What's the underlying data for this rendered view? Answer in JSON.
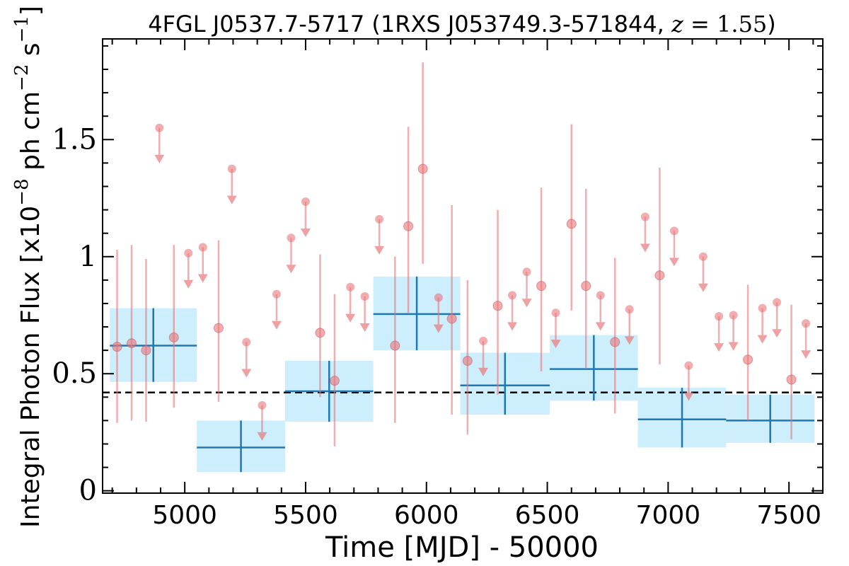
{
  "chart_data": {
    "type": "scatter",
    "title": {
      "source": "4FGL J0537.7-5717",
      "counterpart": "1RXS J053749.3-571844",
      "redshift_symbol": "z",
      "redshift_value": "1.55"
    },
    "xlabel": "Time [MJD] - 50000",
    "ylabel": {
      "prefix": "Integral Photon Flux [x10",
      "exp1": "−8",
      "middle": " ph cm",
      "exp2": "−2",
      "middle2": " s",
      "exp3": "−1",
      "suffix": "]"
    },
    "xlim": [
      4660,
      7640
    ],
    "ylim": [
      -0.01,
      1.93
    ],
    "xticks": [
      5000,
      5500,
      6000,
      6500,
      7000,
      7500
    ],
    "xtick_labels": [
      "5000",
      "5500",
      "6000",
      "6500",
      "7000",
      "7500"
    ],
    "yticks": [
      0,
      0.5,
      1.0,
      1.5
    ],
    "ytick_labels": [
      "0",
      "0.5",
      "1",
      "1.5"
    ],
    "grid": false,
    "reference_line": {
      "y": 0.42,
      "style": "dashed",
      "color": "#000000"
    },
    "colors": {
      "long_bins_line": "#1f77b4",
      "long_bins_band": "#cdeefc",
      "short_bins": "#e8777a"
    },
    "series": [
      {
        "kind": "long-bins",
        "points": [
          {
            "x0": 4690,
            "x1": 5050,
            "y": 0.62,
            "ylo": 0.465,
            "yhi": 0.78
          },
          {
            "x0": 5050,
            "x1": 5415,
            "y": 0.185,
            "ylo": 0.08,
            "yhi": 0.3
          },
          {
            "x0": 5415,
            "x1": 5780,
            "y": 0.425,
            "ylo": 0.295,
            "yhi": 0.555
          },
          {
            "x0": 5780,
            "x1": 6140,
            "y": 0.755,
            "ylo": 0.6,
            "yhi": 0.915
          },
          {
            "x0": 6140,
            "x1": 6510,
            "y": 0.45,
            "ylo": 0.325,
            "yhi": 0.59
          },
          {
            "x0": 6510,
            "x1": 6875,
            "y": 0.52,
            "ylo": 0.385,
            "yhi": 0.665
          },
          {
            "x0": 6875,
            "x1": 7240,
            "y": 0.305,
            "ylo": 0.185,
            "yhi": 0.44
          },
          {
            "x0": 7240,
            "x1": 7605,
            "y": 0.3,
            "ylo": 0.205,
            "yhi": 0.41
          }
        ]
      },
      {
        "kind": "short-bins-detections",
        "points": [
          {
            "x": 4720,
            "y": 0.615,
            "ylo": 0.29,
            "yhi": 1.03
          },
          {
            "x": 4780,
            "y": 0.63,
            "ylo": 0.3,
            "yhi": 1.05
          },
          {
            "x": 4840,
            "y": 0.6,
            "ylo": 0.295,
            "yhi": 0.99
          },
          {
            "x": 4955,
            "y": 0.655,
            "ylo": 0.355,
            "yhi": 1.05
          },
          {
            "x": 5140,
            "y": 0.695,
            "ylo": 0.38,
            "yhi": 1.07
          },
          {
            "x": 5560,
            "y": 0.675,
            "ylo": 0.4,
            "yhi": 1.01
          },
          {
            "x": 5620,
            "y": 0.47,
            "ylo": 0.19,
            "yhi": 0.84
          },
          {
            "x": 5870,
            "y": 0.62,
            "ylo": 0.29,
            "yhi": 1.0
          },
          {
            "x": 5925,
            "y": 1.13,
            "ylo": 0.76,
            "yhi": 1.555
          },
          {
            "x": 5985,
            "y": 1.375,
            "ylo": 0.97,
            "yhi": 1.83
          },
          {
            "x": 6105,
            "y": 0.735,
            "ylo": 0.325,
            "yhi": 1.22
          },
          {
            "x": 6170,
            "y": 0.555,
            "ylo": 0.24,
            "yhi": 0.9
          },
          {
            "x": 6295,
            "y": 0.79,
            "ylo": 0.41,
            "yhi": 1.2
          },
          {
            "x": 6475,
            "y": 0.875,
            "ylo": 0.51,
            "yhi": 1.295
          },
          {
            "x": 6600,
            "y": 1.14,
            "ylo": 0.77,
            "yhi": 1.565
          },
          {
            "x": 6660,
            "y": 0.875,
            "ylo": 0.52,
            "yhi": 1.29
          },
          {
            "x": 6780,
            "y": 0.635,
            "ylo": 0.33,
            "yhi": 0.995
          },
          {
            "x": 6965,
            "y": 0.92,
            "ylo": 0.54,
            "yhi": 1.38
          },
          {
            "x": 7330,
            "y": 0.56,
            "ylo": 0.3,
            "yhi": 0.88
          },
          {
            "x": 7510,
            "y": 0.475,
            "ylo": 0.22,
            "yhi": 0.795
          }
        ]
      },
      {
        "kind": "short-bins-upper-limits",
        "points": [
          {
            "x": 4895,
            "y": 1.55
          },
          {
            "x": 5015,
            "y": 1.015
          },
          {
            "x": 5075,
            "y": 1.04
          },
          {
            "x": 5195,
            "y": 1.375
          },
          {
            "x": 5255,
            "y": 0.635
          },
          {
            "x": 5320,
            "y": 0.365
          },
          {
            "x": 5380,
            "y": 0.84
          },
          {
            "x": 5440,
            "y": 1.08
          },
          {
            "x": 5500,
            "y": 1.235
          },
          {
            "x": 5685,
            "y": 0.87
          },
          {
            "x": 5745,
            "y": 0.83
          },
          {
            "x": 5805,
            "y": 1.16
          },
          {
            "x": 6050,
            "y": 0.825
          },
          {
            "x": 6235,
            "y": 0.64
          },
          {
            "x": 6355,
            "y": 0.835
          },
          {
            "x": 6415,
            "y": 0.935
          },
          {
            "x": 6535,
            "y": 0.76
          },
          {
            "x": 6720,
            "y": 0.835
          },
          {
            "x": 6840,
            "y": 0.775
          },
          {
            "x": 6905,
            "y": 1.17
          },
          {
            "x": 7025,
            "y": 1.11
          },
          {
            "x": 7085,
            "y": 0.535
          },
          {
            "x": 7145,
            "y": 1.0
          },
          {
            "x": 7210,
            "y": 0.745
          },
          {
            "x": 7270,
            "y": 0.75
          },
          {
            "x": 7390,
            "y": 0.78
          },
          {
            "x": 7450,
            "y": 0.805
          },
          {
            "x": 7570,
            "y": 0.715
          }
        ]
      }
    ]
  }
}
